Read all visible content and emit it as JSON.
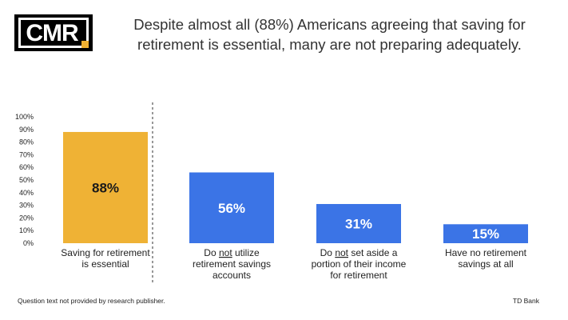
{
  "logo": {
    "text": "CMR"
  },
  "title": "Despite almost all (88%) Americans agreeing that saving for retirement is essential, many are not preparing adequately.",
  "footer_note": "Question text not provided by research publisher.",
  "source": "TD Bank",
  "colors": {
    "highlight": "#efb235",
    "primary": "#3b74e6",
    "label_dark": "#1a1a1a",
    "label_light": "#ffffff"
  },
  "chart_data": {
    "type": "bar",
    "categories": [
      [
        "Saving for retirement",
        "is essential"
      ],
      [
        "Do |not| utilize",
        "retirement savings",
        "accounts"
      ],
      [
        "Do |not| set aside a",
        "portion of their income",
        "for retirement"
      ],
      [
        "Have no retirement",
        "savings at all"
      ]
    ],
    "values": [
      88,
      56,
      31,
      15
    ],
    "data_labels": [
      "88%",
      "56%",
      "31%",
      "15%"
    ],
    "ylim": [
      0,
      100
    ],
    "yticks": [
      "0%",
      "10%",
      "20%",
      "30%",
      "40%",
      "50%",
      "60%",
      "70%",
      "80%",
      "90%",
      "100%"
    ],
    "divider_after_category": 0,
    "grid": false,
    "legend": "none"
  }
}
